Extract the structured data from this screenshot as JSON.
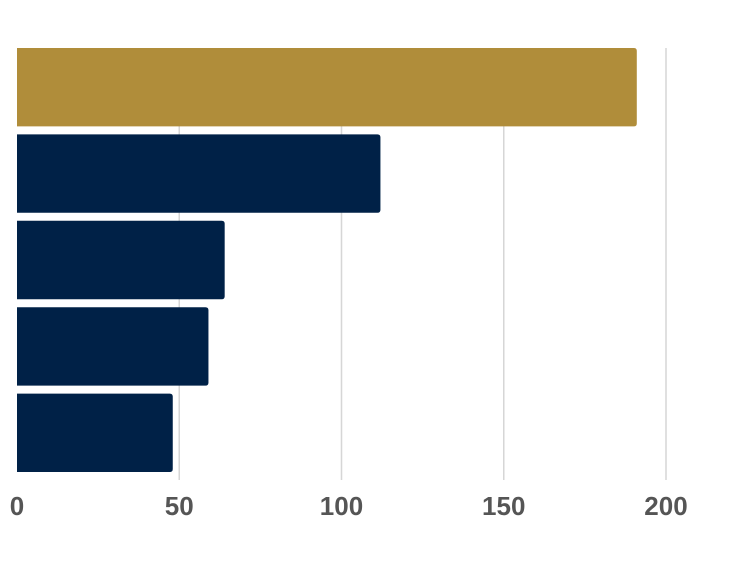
{
  "chart_data": {
    "type": "bar",
    "orientation": "horizontal",
    "title": "",
    "xlabel": "",
    "ylabel": "",
    "categories": [
      "",
      "",
      "",
      "",
      ""
    ],
    "values": [
      191,
      112,
      64,
      59,
      48
    ],
    "xlim": [
      0,
      200
    ],
    "x_ticks": [
      0,
      50,
      100,
      150,
      200
    ],
    "x_tick_labels": [
      "0",
      "50",
      "100",
      "150",
      "200"
    ],
    "grid": true,
    "bar_colors": [
      "#b08d3a",
      "#002147",
      "#002147",
      "#002147",
      "#002147"
    ],
    "tick_color": "#555555",
    "grid_color": "#d6d6d6"
  }
}
